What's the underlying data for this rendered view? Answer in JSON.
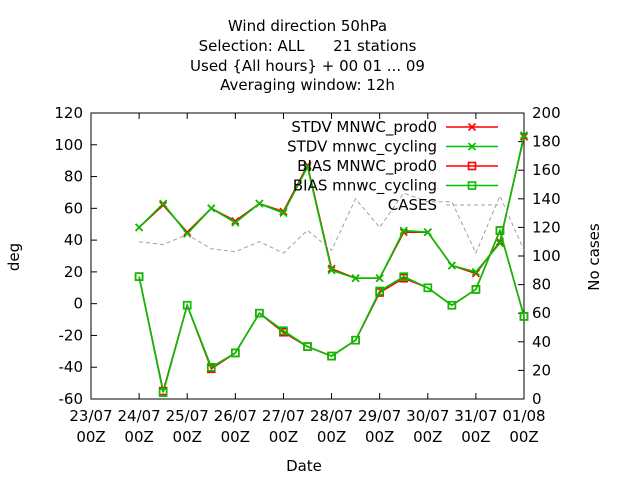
{
  "chart_data": {
    "type": "line",
    "title_lines": [
      "Wind direction 50hPa",
      "Selection: ALL      21 stations",
      "Used {All hours} + 00 01 ... 09",
      "Averaging window: 12h"
    ],
    "xlabel": "Date",
    "ylabel": "deg",
    "y2label": "No cases",
    "ylim": [
      -60,
      120
    ],
    "y2lim": [
      0,
      200
    ],
    "yticks": [
      "-60",
      "-40",
      "-20",
      "0",
      "20",
      "40",
      "60",
      "80",
      "100",
      "120"
    ],
    "y2ticks": [
      "0",
      "20",
      "40",
      "60",
      "80",
      "100",
      "120",
      "140",
      "160",
      "180",
      "200"
    ],
    "xticks": [
      {
        "day": 0,
        "line1": "23/07",
        "line2": "00Z"
      },
      {
        "day": 1,
        "line1": "24/07",
        "line2": "00Z"
      },
      {
        "day": 2,
        "line1": "25/07",
        "line2": "00Z"
      },
      {
        "day": 3,
        "line1": "26/07",
        "line2": "00Z"
      },
      {
        "day": 4,
        "line1": "27/07",
        "line2": "00Z"
      },
      {
        "day": 5,
        "line1": "28/07",
        "line2": "00Z"
      },
      {
        "day": 6,
        "line1": "29/07",
        "line2": "00Z"
      },
      {
        "day": 7,
        "line1": "30/07",
        "line2": "00Z"
      },
      {
        "day": 8,
        "line1": "31/07",
        "line2": "00Z"
      },
      {
        "day": 9,
        "line1": "01/08",
        "line2": "00Z"
      }
    ],
    "x_days": [
      1.0,
      1.5,
      2.0,
      2.5,
      3.0,
      3.5,
      4.0,
      4.5,
      5.0,
      5.5,
      6.0,
      6.5,
      7.0,
      7.5,
      8.0,
      8.5,
      9.0
    ],
    "legend_position": "top-right",
    "series": [
      {
        "name": "STDV MNWC_prod0",
        "axis": "y",
        "color": "#ff0000",
        "marker": "x",
        "dash": false,
        "values": [
          48,
          62,
          45,
          60,
          52,
          63,
          58,
          87,
          22,
          16,
          16,
          45,
          45,
          24,
          19,
          39,
          105
        ]
      },
      {
        "name": "STDV mnwc_cycling",
        "axis": "y",
        "color": "#00c000",
        "marker": "x",
        "dash": false,
        "values": [
          48,
          63,
          44,
          60,
          51,
          63,
          57,
          86,
          21,
          16,
          16,
          46,
          45,
          24,
          20,
          38,
          106
        ]
      },
      {
        "name": "BIAS MNWC_prod0",
        "axis": "y",
        "color": "#ff0000",
        "marker": "square",
        "dash": false,
        "values": [
          17,
          -55,
          -1,
          -41,
          -31,
          -6,
          -18,
          -27,
          -33,
          -23,
          7,
          16,
          10,
          -1,
          9,
          46,
          -8
        ]
      },
      {
        "name": "BIAS mnwc_cycling",
        "axis": "y",
        "color": "#00c000",
        "marker": "square",
        "dash": false,
        "values": [
          17,
          -56,
          -1,
          -40,
          -31,
          -6,
          -17,
          -27,
          -33,
          -23,
          8,
          17,
          10,
          -1,
          9,
          46,
          -8
        ]
      },
      {
        "name": "CASES",
        "axis": "y2",
        "color": "#a0a0a0",
        "marker": "none",
        "dash": true,
        "values": [
          110,
          108,
          115,
          105,
          103,
          110,
          102,
          118,
          104,
          140,
          120,
          144,
          138,
          138,
          102,
          142,
          104
        ]
      }
    ]
  }
}
